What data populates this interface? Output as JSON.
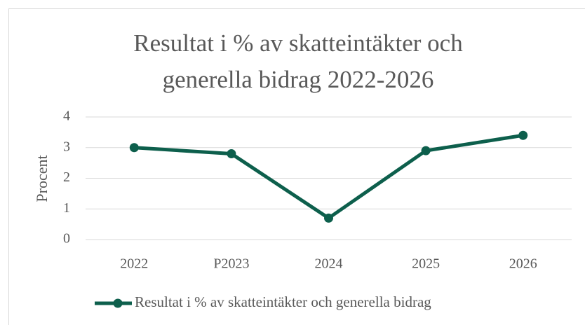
{
  "chart_data": {
    "type": "line",
    "title": "Resultat i % av skatteintäkter och generella bidrag 2022-2026",
    "y_label": "Procent",
    "categories": [
      "2022",
      "P2023",
      "2024",
      "2025",
      "2026"
    ],
    "series": [
      {
        "name": "Resultat i % av skatteintäkter och generella bidrag",
        "color": "#0d5f4c",
        "values": [
          3.0,
          2.8,
          0.7,
          2.9,
          3.4
        ]
      }
    ],
    "ylim": [
      0,
      4
    ],
    "yticks": [
      0,
      1,
      2,
      3,
      4
    ],
    "grid": true,
    "legend": "bottom"
  }
}
